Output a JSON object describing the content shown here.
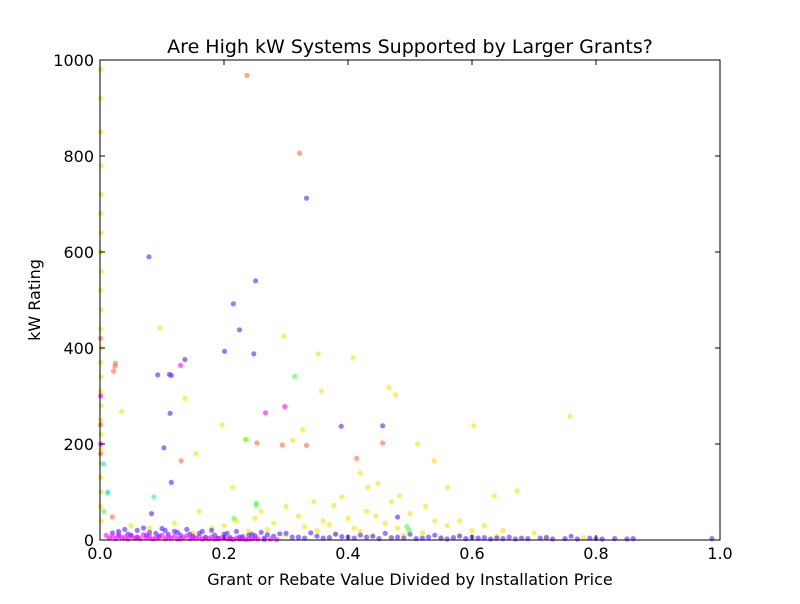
{
  "chart_data": {
    "type": "scatter",
    "title": "Are High kW Systems Supported by Larger Grants?",
    "xlabel": "Grant or Rebate Value Divided by Installation Price",
    "ylabel": "kW Rating",
    "xlim": [
      0.0,
      1.0
    ],
    "ylim": [
      0,
      1000
    ],
    "xticks": [
      0.0,
      0.2,
      0.4,
      0.6,
      0.8,
      1.0
    ],
    "yticks": [
      0,
      200,
      400,
      600,
      800,
      1000
    ],
    "xtick_labels": [
      "0.0",
      "0.2",
      "0.4",
      "0.6",
      "0.8",
      "1.0"
    ],
    "ytick_labels": [
      "0",
      "200",
      "400",
      "600",
      "800",
      "1000"
    ],
    "grid": false,
    "legend": null,
    "marker_alpha": 0.6,
    "series": [
      {
        "color": "#ffdd00",
        "points": [
          [
            0.001,
            980
          ],
          [
            0.001,
            920
          ],
          [
            0.001,
            850
          ],
          [
            0.002,
            780
          ],
          [
            0.002,
            720
          ],
          [
            0.001,
            680
          ],
          [
            0.002,
            640
          ],
          [
            0.001,
            600
          ],
          [
            0.002,
            560
          ],
          [
            0.001,
            520
          ],
          [
            0.002,
            480
          ],
          [
            0.001,
            440
          ],
          [
            0.002,
            400
          ],
          [
            0.001,
            370
          ],
          [
            0.002,
            340
          ],
          [
            0.001,
            310
          ],
          [
            0.002,
            280
          ],
          [
            0.001,
            250
          ],
          [
            0.002,
            220
          ],
          [
            0.001,
            190
          ],
          [
            0.002,
            160
          ],
          [
            0.001,
            130
          ],
          [
            0.002,
            100
          ],
          [
            0.001,
            70
          ],
          [
            0.002,
            40
          ],
          [
            0.035,
            268
          ],
          [
            0.097,
            442
          ],
          [
            0.137,
            295
          ],
          [
            0.155,
            180
          ],
          [
            0.197,
            240
          ],
          [
            0.214,
            110
          ],
          [
            0.234,
            210
          ],
          [
            0.297,
            425
          ],
          [
            0.311,
            208
          ],
          [
            0.327,
            230
          ],
          [
            0.352,
            388
          ],
          [
            0.357,
            310
          ],
          [
            0.408,
            380
          ],
          [
            0.432,
            110
          ],
          [
            0.448,
            118
          ],
          [
            0.466,
            318
          ],
          [
            0.477,
            302
          ],
          [
            0.483,
            92
          ],
          [
            0.512,
            200
          ],
          [
            0.539,
            165
          ],
          [
            0.561,
            110
          ],
          [
            0.603,
            238
          ],
          [
            0.636,
            92
          ],
          [
            0.673,
            102
          ],
          [
            0.758,
            258
          ],
          [
            0.39,
            90
          ],
          [
            0.42,
            140
          ],
          [
            0.377,
            72
          ],
          [
            0.345,
            80
          ],
          [
            0.26,
            60
          ],
          [
            0.3,
            70
          ],
          [
            0.47,
            80
          ],
          [
            0.525,
            70
          ],
          [
            0.58,
            40
          ],
          [
            0.62,
            30
          ],
          [
            0.65,
            20
          ],
          [
            0.7,
            15
          ],
          [
            0.43,
            60
          ],
          [
            0.445,
            50
          ],
          [
            0.5,
            55
          ],
          [
            0.54,
            40
          ],
          [
            0.56,
            30
          ],
          [
            0.25,
            45
          ],
          [
            0.28,
            35
          ],
          [
            0.32,
            50
          ],
          [
            0.36,
            40
          ],
          [
            0.4,
            45
          ],
          [
            0.46,
            35
          ],
          [
            0.48,
            25
          ],
          [
            0.6,
            20
          ],
          [
            0.2,
            30
          ],
          [
            0.18,
            25
          ],
          [
            0.22,
            40
          ],
          [
            0.16,
            60
          ],
          [
            0.12,
            35
          ],
          [
            0.08,
            25
          ],
          [
            0.05,
            30
          ],
          [
            0.15,
            15
          ],
          [
            0.35,
            20
          ],
          [
            0.41,
            25
          ],
          [
            0.52,
            15
          ],
          [
            0.58,
            10
          ],
          [
            0.64,
            8
          ],
          [
            0.72,
            6
          ],
          [
            0.78,
            5
          ],
          [
            0.3,
            10
          ],
          [
            0.38,
            12
          ],
          [
            0.44,
            8
          ],
          [
            0.49,
            10
          ],
          [
            0.55,
            5
          ],
          [
            0.24,
            18
          ],
          [
            0.27,
            22
          ],
          [
            0.33,
            28
          ],
          [
            0.37,
            32
          ],
          [
            0.42,
            18
          ]
        ]
      },
      {
        "color": "#5522ff",
        "points": [
          [
            0.079,
            590
          ],
          [
            0.215,
            492
          ],
          [
            0.251,
            540
          ],
          [
            0.225,
            438
          ],
          [
            0.333,
            712
          ],
          [
            0.201,
            393
          ],
          [
            0.248,
            388
          ],
          [
            0.137,
            376
          ],
          [
            0.093,
            344
          ],
          [
            0.112,
            345
          ],
          [
            0.115,
            343
          ],
          [
            0.113,
            264
          ],
          [
            0.103,
            192
          ],
          [
            0.115,
            120
          ],
          [
            0.083,
            55
          ],
          [
            0.389,
            237
          ],
          [
            0.456,
            238
          ],
          [
            0.48,
            48
          ],
          [
            0.987,
            3
          ],
          [
            0.86,
            3
          ],
          [
            0.8,
            3
          ],
          [
            0.76,
            8
          ],
          [
            0.72,
            5
          ],
          [
            0.68,
            4
          ],
          [
            0.66,
            6
          ],
          [
            0.62,
            5
          ],
          [
            0.58,
            8
          ],
          [
            0.54,
            10
          ],
          [
            0.5,
            12
          ],
          [
            0.46,
            14
          ],
          [
            0.42,
            10
          ],
          [
            0.38,
            12
          ],
          [
            0.34,
            15
          ],
          [
            0.3,
            14
          ],
          [
            0.26,
            16
          ],
          [
            0.22,
            18
          ],
          [
            0.18,
            20
          ],
          [
            0.14,
            22
          ],
          [
            0.1,
            24
          ],
          [
            0.06,
            20
          ],
          [
            0.03,
            18
          ],
          [
            0.02,
            15
          ],
          [
            0.04,
            22
          ],
          [
            0.07,
            25
          ],
          [
            0.09,
            14
          ],
          [
            0.11,
            12
          ],
          [
            0.13,
            10
          ],
          [
            0.15,
            8
          ],
          [
            0.17,
            6
          ],
          [
            0.19,
            4
          ],
          [
            0.21,
            5
          ],
          [
            0.23,
            7
          ],
          [
            0.25,
            9
          ],
          [
            0.27,
            11
          ],
          [
            0.29,
            13
          ],
          [
            0.31,
            6
          ],
          [
            0.33,
            4
          ],
          [
            0.35,
            8
          ],
          [
            0.37,
            5
          ],
          [
            0.39,
            7
          ],
          [
            0.41,
            4
          ],
          [
            0.43,
            6
          ],
          [
            0.45,
            3
          ],
          [
            0.47,
            5
          ],
          [
            0.49,
            4
          ],
          [
            0.51,
            3
          ],
          [
            0.53,
            6
          ],
          [
            0.55,
            4
          ],
          [
            0.57,
            5
          ],
          [
            0.59,
            3
          ],
          [
            0.61,
            4
          ],
          [
            0.63,
            2
          ],
          [
            0.65,
            3
          ],
          [
            0.67,
            2
          ],
          [
            0.69,
            3
          ],
          [
            0.71,
            4
          ],
          [
            0.73,
            2
          ],
          [
            0.75,
            3
          ],
          [
            0.77,
            2
          ],
          [
            0.79,
            4
          ],
          [
            0.81,
            2
          ],
          [
            0.83,
            3
          ],
          [
            0.85,
            2
          ],
          [
            0.05,
            10
          ],
          [
            0.08,
            16
          ],
          [
            0.12,
            18
          ],
          [
            0.16,
            14
          ],
          [
            0.2,
            12
          ],
          [
            0.24,
            10
          ],
          [
            0.28,
            8
          ],
          [
            0.32,
            6
          ],
          [
            0.36,
            4
          ],
          [
            0.4,
            6
          ],
          [
            0.44,
            8
          ],
          [
            0.48,
            6
          ],
          [
            0.52,
            4
          ],
          [
            0.56,
            2
          ],
          [
            0.6,
            6
          ],
          [
            0.64,
            4
          ],
          [
            0.03,
            8
          ],
          [
            0.045,
            12
          ],
          [
            0.06,
            6
          ],
          [
            0.075,
            10
          ],
          [
            0.095,
            8
          ],
          [
            0.105,
            20
          ],
          [
            0.125,
            16
          ],
          [
            0.145,
            12
          ],
          [
            0.165,
            18
          ],
          [
            0.185,
            10
          ],
          [
            0.205,
            14
          ],
          [
            0.225,
            6
          ],
          [
            0.245,
            12
          ],
          [
            0.265,
            4
          ]
        ]
      },
      {
        "color": "#ff00ff",
        "points": [
          [
            0.13,
            364
          ],
          [
            0.298,
            278
          ],
          [
            0.267,
            265
          ],
          [
            0.01,
            10
          ],
          [
            0.02,
            8
          ],
          [
            0.03,
            12
          ],
          [
            0.04,
            6
          ],
          [
            0.05,
            9
          ],
          [
            0.06,
            5
          ],
          [
            0.07,
            11
          ],
          [
            0.08,
            7
          ],
          [
            0.09,
            4
          ],
          [
            0.1,
            10
          ],
          [
            0.11,
            6
          ],
          [
            0.12,
            8
          ],
          [
            0.13,
            3
          ],
          [
            0.14,
            9
          ],
          [
            0.15,
            5
          ],
          [
            0.16,
            7
          ],
          [
            0.17,
            4
          ],
          [
            0.18,
            6
          ],
          [
            0.19,
            3
          ],
          [
            0.2,
            5
          ],
          [
            0.21,
            2
          ],
          [
            0.22,
            4
          ],
          [
            0.23,
            3
          ],
          [
            0.24,
            2
          ],
          [
            0.25,
            4
          ],
          [
            0.015,
            4
          ],
          [
            0.025,
            3
          ],
          [
            0.035,
            5
          ],
          [
            0.045,
            2
          ],
          [
            0.055,
            4
          ],
          [
            0.065,
            3
          ],
          [
            0.075,
            5
          ],
          [
            0.085,
            2
          ],
          [
            0.095,
            6
          ],
          [
            0.105,
            3
          ],
          [
            0.115,
            4
          ],
          [
            0.125,
            2
          ],
          [
            0.135,
            5
          ],
          [
            0.145,
            3
          ],
          [
            0.155,
            4
          ],
          [
            0.165,
            2
          ],
          [
            0.175,
            3
          ],
          [
            0.185,
            2
          ],
          [
            0.195,
            4
          ],
          [
            0.205,
            3
          ],
          [
            0.215,
            1
          ],
          [
            0.225,
            2
          ],
          [
            0.235,
            1
          ],
          [
            0.245,
            3
          ],
          [
            0.255,
            2
          ],
          [
            0.265,
            1
          ],
          [
            0.275,
            2
          ],
          [
            0.285,
            1
          ],
          [
            0.001,
            300
          ],
          [
            0.001,
            200
          ]
        ]
      },
      {
        "color": "#ff6a33",
        "points": [
          [
            0.237,
            968
          ],
          [
            0.322,
            806
          ],
          [
            0.025,
            368
          ],
          [
            0.024,
            362
          ],
          [
            0.022,
            352
          ],
          [
            0.131,
            165
          ],
          [
            0.253,
            202
          ],
          [
            0.294,
            198
          ],
          [
            0.333,
            197
          ],
          [
            0.414,
            170
          ],
          [
            0.456,
            202
          ],
          [
            0.02,
            48
          ],
          [
            0.001,
            240
          ],
          [
            0.001,
            180
          ],
          [
            0.001,
            420
          ]
        ]
      },
      {
        "color": "#44ff44",
        "points": [
          [
            0.314,
            341
          ],
          [
            0.236,
            209
          ],
          [
            0.252,
            77
          ],
          [
            0.252,
            72
          ],
          [
            0.216,
            45
          ],
          [
            0.495,
            28
          ],
          [
            0.498,
            20
          ],
          [
            0.006,
            60
          ]
        ]
      },
      {
        "color": "#33dddd",
        "points": [
          [
            0.087,
            90
          ],
          [
            0.013,
            100
          ],
          [
            0.006,
            158
          ],
          [
            0.012,
            98
          ]
        ]
      }
    ]
  }
}
